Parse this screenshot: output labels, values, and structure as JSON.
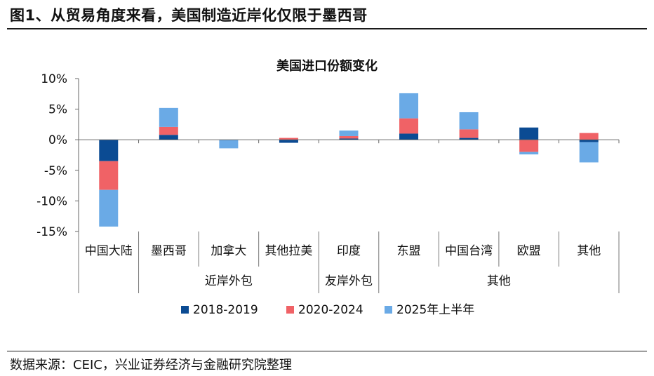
{
  "figure": {
    "title": "图1、从贸易角度来看，美国制造近岸化仅限于墨西哥",
    "source": "数据来源：CEIC，兴业证券经济与金融研究院整理"
  },
  "chart_data": {
    "type": "bar",
    "stacked": true,
    "title": "美国进口份额变化",
    "categories": [
      "中国大陆",
      "墨西哥",
      "加拿大",
      "其他拉美",
      "印度",
      "东盟",
      "中国台湾",
      "欧盟",
      "其他"
    ],
    "groups": [
      {
        "label": "近岸外包",
        "categories": [
          "墨西哥",
          "加拿大",
          "其他拉美"
        ]
      },
      {
        "label": "友岸外包",
        "categories": [
          "印度"
        ]
      },
      {
        "label": "其他",
        "categories": [
          "东盟",
          "中国台湾",
          "欧盟",
          "其他"
        ]
      }
    ],
    "series": [
      {
        "name": "2018-2019",
        "color": "#0b4b93",
        "values": [
          -3.5,
          0.8,
          0.0,
          -0.5,
          0.2,
          1.0,
          0.3,
          2.0,
          -0.4
        ]
      },
      {
        "name": "2020-2024",
        "color": "#f06266",
        "values": [
          -4.7,
          1.3,
          0.0,
          0.3,
          0.4,
          2.5,
          1.4,
          -2.0,
          1.1
        ]
      },
      {
        "name": "2025年上半年",
        "color": "#6aaae6",
        "values": [
          -6.0,
          3.1,
          -1.4,
          0.0,
          0.9,
          4.1,
          2.8,
          -0.4,
          -3.3
        ]
      }
    ],
    "ylim": [
      -15,
      10
    ],
    "yticks": [
      10,
      5,
      0,
      -5,
      -10,
      -15
    ],
    "ytick_labels": [
      "10%",
      "5%",
      "0%",
      "-5%",
      "-10%",
      "-15%"
    ],
    "xlabel": "",
    "ylabel": "",
    "legend": "bottom",
    "grid": false
  }
}
